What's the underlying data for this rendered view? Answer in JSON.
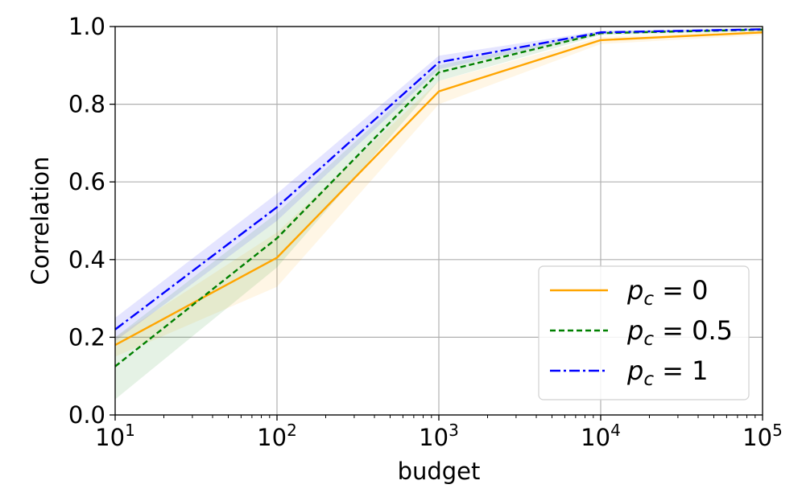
{
  "chart_data": {
    "type": "line",
    "title": "",
    "xlabel": "budget",
    "ylabel": "Correlation",
    "xscale": "log",
    "xlim": [
      10,
      100000
    ],
    "ylim": [
      0.0,
      1.0
    ],
    "grid": true,
    "legend_position": "lower-right",
    "x": [
      10,
      100,
      1000,
      10000,
      100000
    ],
    "x_tick_labels": [
      {
        "base": "10",
        "exp": "1"
      },
      {
        "base": "10",
        "exp": "2"
      },
      {
        "base": "10",
        "exp": "3"
      },
      {
        "base": "10",
        "exp": "4"
      },
      {
        "base": "10",
        "exp": "5"
      }
    ],
    "y_ticks": [
      0.0,
      0.2,
      0.4,
      0.6,
      0.8,
      1.0
    ],
    "y_tick_labels": [
      "0.0",
      "0.2",
      "0.4",
      "0.6",
      "0.8",
      "1.0"
    ],
    "series": [
      {
        "name": "p_c = 0",
        "label_symbol": "p",
        "label_sub": "c",
        "label_value": " = 0",
        "color": "#ffa500",
        "style": "solid",
        "values": [
          0.18,
          0.405,
          0.833,
          0.965,
          0.985
        ],
        "lower": [
          0.15,
          0.33,
          0.8,
          0.955,
          0.978
        ],
        "upper": [
          0.2,
          0.47,
          0.86,
          0.973,
          0.99
        ]
      },
      {
        "name": "p_c = 0.5",
        "label_symbol": "p",
        "label_sub": "c",
        "label_value": " = 0.5",
        "color": "#008000",
        "style": "dashed",
        "values": [
          0.125,
          0.455,
          0.882,
          0.983,
          0.992
        ],
        "lower": [
          0.04,
          0.38,
          0.86,
          0.978,
          0.989
        ],
        "upper": [
          0.2,
          0.52,
          0.9,
          0.988,
          0.995
        ]
      },
      {
        "name": "p_c = 1",
        "label_symbol": "p",
        "label_sub": "c",
        "label_value": " = 1",
        "color": "#0000ff",
        "style": "dashdot",
        "values": [
          0.22,
          0.535,
          0.908,
          0.985,
          0.993
        ],
        "lower": [
          0.19,
          0.5,
          0.89,
          0.981,
          0.99
        ],
        "upper": [
          0.25,
          0.57,
          0.925,
          0.989,
          0.996
        ]
      }
    ]
  }
}
